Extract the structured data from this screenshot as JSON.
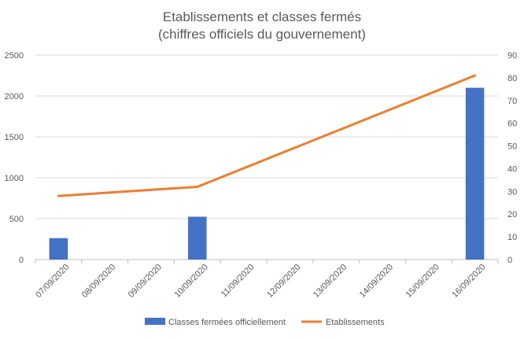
{
  "chart_data": {
    "type": "bar",
    "title": "Etablissements et classes fermés",
    "subtitle": "(chiffres officiels du gouvernement)",
    "categories": [
      "07/09/2020",
      "08/09/2020",
      "09/09/2020",
      "10/09/2020",
      "11/09/2020",
      "12/09/2020",
      "13/09/2020",
      "14/09/2020",
      "15/09/2020",
      "16/09/2020"
    ],
    "series": [
      {
        "name": "Classes fermées officiellement",
        "type": "bar",
        "axis": "left",
        "color": "#4472C4",
        "values": [
          262,
          null,
          null,
          524,
          null,
          null,
          null,
          null,
          null,
          2100
        ]
      },
      {
        "name": "Etablissements",
        "type": "line",
        "axis": "right",
        "color": "#ED7D31",
        "values": [
          28,
          null,
          null,
          32,
          null,
          null,
          null,
          null,
          null,
          81
        ]
      }
    ],
    "left_axis": {
      "ylim": [
        0,
        2500
      ],
      "ticks": [
        "0",
        "500",
        "1000",
        "1500",
        "2000",
        "2500"
      ]
    },
    "right_axis": {
      "ylim": [
        0,
        90
      ],
      "ticks": [
        "0",
        "10",
        "20",
        "30",
        "40",
        "50",
        "60",
        "70",
        "80",
        "90"
      ]
    },
    "grid": true,
    "legend_position": "bottom"
  }
}
